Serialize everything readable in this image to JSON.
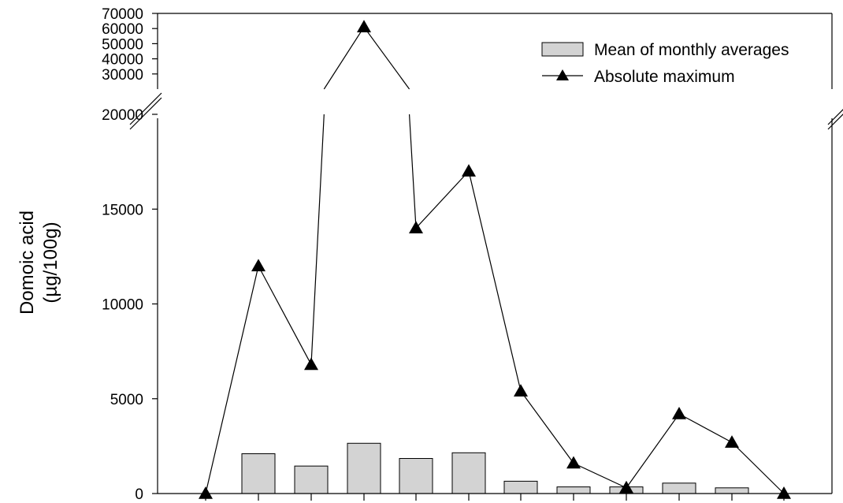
{
  "chart_data": {
    "type": "bar",
    "ylabel_line1": "Domoic acid",
    "ylabel_line2": "(µg/100g)",
    "categories": [
      "",
      "",
      "",
      "",
      "",
      "",
      "",
      "",
      "",
      "",
      "",
      ""
    ],
    "series": [
      {
        "name": "Mean of monthly averages",
        "kind": "bar",
        "color": "#d3d3d3",
        "values": [
          null,
          2100,
          1450,
          2650,
          1850,
          2150,
          650,
          350,
          350,
          550,
          300,
          null
        ]
      },
      {
        "name": "Absolute maximum",
        "kind": "line",
        "marker": "triangle",
        "color": "#000000",
        "values": [
          0,
          12000,
          6800,
          61000,
          14000,
          17000,
          5400,
          1600,
          300,
          4200,
          2700,
          0
        ]
      }
    ],
    "y_axis_lower": {
      "ylim": [
        0,
        20000
      ],
      "ticks": [
        "0",
        "5000",
        "10000",
        "15000",
        "20000"
      ]
    },
    "y_axis_upper": {
      "ylim": [
        20000,
        70000
      ],
      "ticks": [
        "30000",
        "40000",
        "50000",
        "60000",
        "70000"
      ]
    },
    "axis_break": true,
    "legend_position": "top-right",
    "grid": false
  }
}
